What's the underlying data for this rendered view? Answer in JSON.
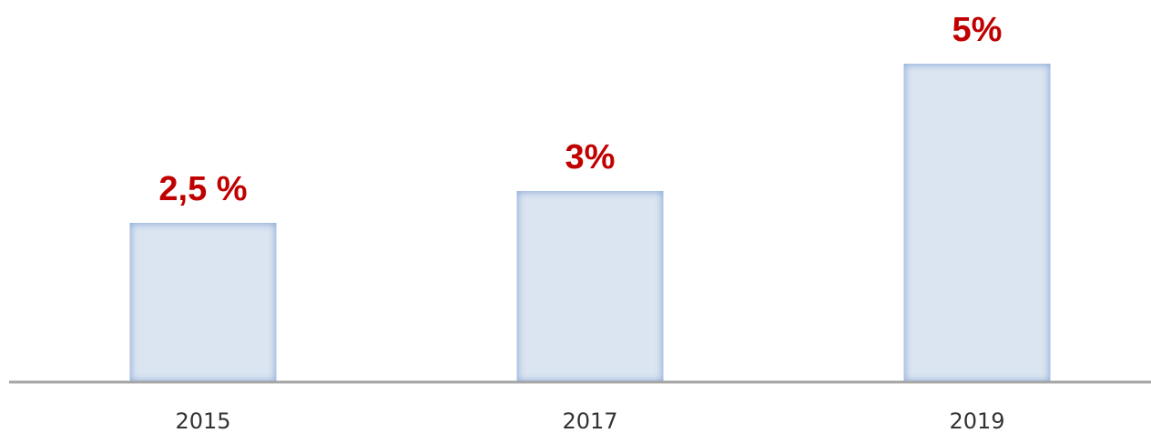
{
  "chart_data": {
    "type": "bar",
    "categories": [
      "2015",
      "2017",
      "2019"
    ],
    "values": [
      2.5,
      3,
      5
    ],
    "value_labels": [
      "2,5 %",
      "3%",
      "5%"
    ],
    "color": "#dbe5f1",
    "label_color": "#c00000",
    "ylim": [
      0,
      6
    ]
  }
}
